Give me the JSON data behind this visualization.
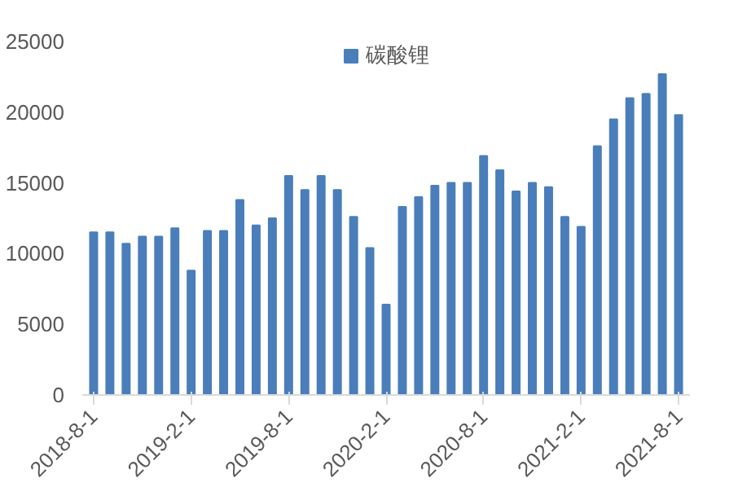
{
  "chart_data": {
    "type": "bar",
    "categories": [
      "2018-8-1",
      null,
      null,
      null,
      null,
      null,
      "2019-2-1",
      null,
      null,
      null,
      null,
      null,
      "2019-8-1",
      null,
      null,
      null,
      null,
      null,
      "2020-2-1",
      null,
      null,
      null,
      null,
      null,
      "2020-8-1",
      null,
      null,
      null,
      null,
      null,
      "2021-2-1",
      null,
      null,
      null,
      null,
      null,
      "2021-8-1"
    ],
    "series": [
      {
        "name": "碳酸锂",
        "color": "#4a7ebb",
        "values": [
          11500,
          11500,
          10700,
          11200,
          11200,
          11800,
          8800,
          11600,
          11600,
          13800,
          12000,
          12500,
          15500,
          14500,
          15500,
          14500,
          12600,
          10400,
          6400,
          13300,
          14000,
          14800,
          15000,
          15000,
          16900,
          15900,
          14400,
          15000,
          14700,
          12600,
          11900,
          17600,
          19500,
          21000,
          21300,
          22700,
          19800
        ]
      }
    ],
    "ylim": [
      0,
      25000
    ],
    "yticks": [
      0,
      5000,
      10000,
      15000,
      20000,
      25000
    ],
    "grid": false,
    "legend": "top"
  }
}
